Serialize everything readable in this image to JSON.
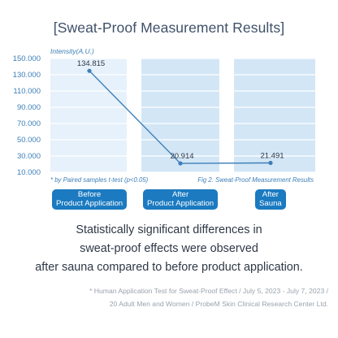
{
  "title": "[Sweat-Proof Measurement Results]",
  "chart_data": {
    "type": "line",
    "ylabel": "Intensity(A.U.)",
    "ylim": [
      10000,
      150000
    ],
    "yticks": [
      10000,
      30000,
      50000,
      70000,
      90000,
      110000,
      130000,
      150000
    ],
    "ytick_labels": [
      "10.000",
      "30.000",
      "50.000",
      "70.000",
      "90.000",
      "110.000",
      "130.000",
      "150.000"
    ],
    "categories": [
      "Before\nProduct Application",
      "After\nProduct Application",
      "After\nSauna"
    ],
    "values": [
      134815,
      20914,
      21491
    ],
    "value_labels": [
      "134.815",
      "20.914",
      "21.491"
    ],
    "grid": true,
    "colors": {
      "line": "#3d7fb8",
      "grid": "#ffffff",
      "band_light": "#e6f1fb",
      "band_dark": "#d3e6f6",
      "axis_text": "#3d7fb8",
      "badge": "#1b7ac0"
    }
  },
  "footnote_left": "* by Paired samples t-test (p<0.05)",
  "footnote_right": "Fig 2. Sweat-Proof Measurement Results",
  "summary": [
    "Statistically significant differences in",
    "sweat-proof effects were observed",
    "after sauna compared to before product application."
  ],
  "disclaimer": [
    "* Human Application Test for Sweat-Proof Effect / July 5, 2023 - July 7, 2023 /",
    "20 Adult Men and Women / ProbeM Skin Clinical Research Center Ltd."
  ]
}
